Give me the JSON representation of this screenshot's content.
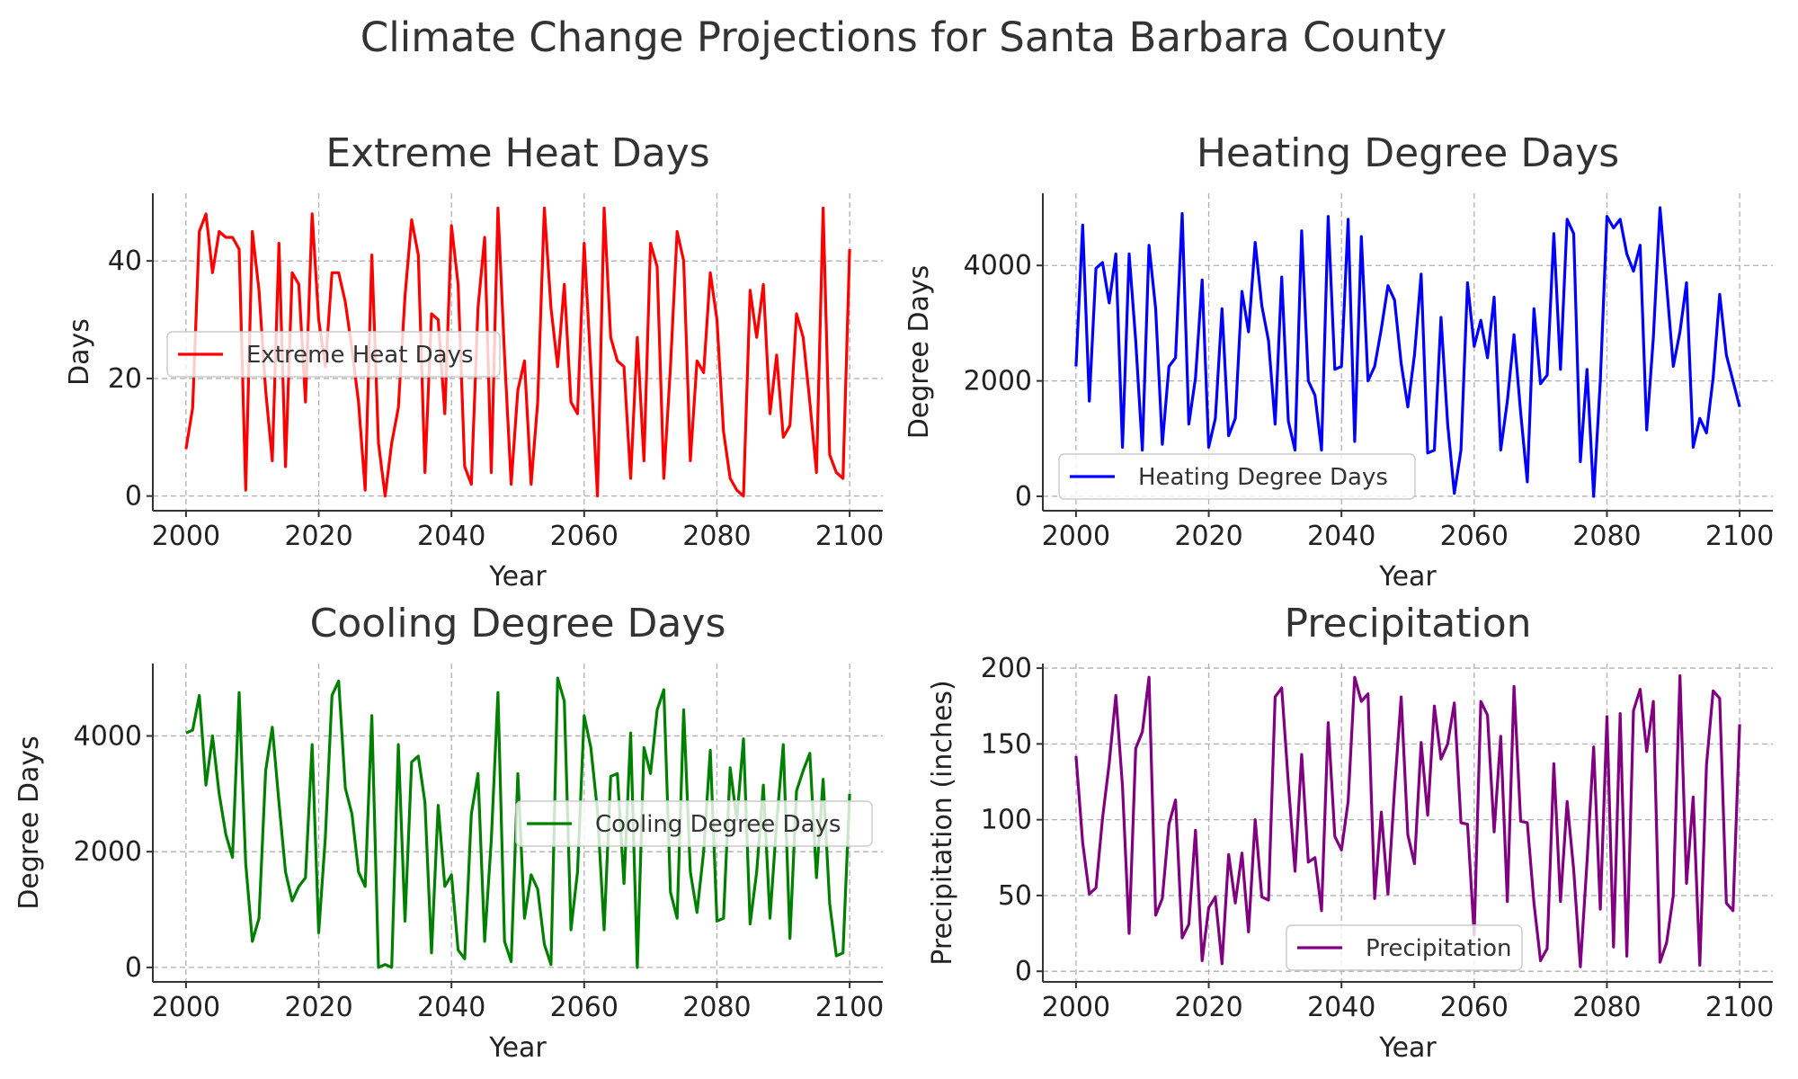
{
  "figure_title": "Climate Change Projections for Santa Barbara County",
  "chart_data": [
    {
      "type": "line",
      "title": "Extreme Heat Days",
      "xlabel": "Year",
      "ylabel": "Days",
      "xlim": [
        1995,
        2105
      ],
      "ylim": [
        -2.5,
        51.5
      ],
      "xticks": [
        2000,
        2020,
        2040,
        2060,
        2080,
        2100
      ],
      "yticks": [
        0,
        20,
        40
      ],
      "grid": true,
      "legend": "center-left",
      "series": [
        {
          "name": "Extreme Heat Days",
          "color": "#ff0000",
          "x": [
            2000,
            2001,
            2002,
            2003,
            2004,
            2005,
            2006,
            2007,
            2008,
            2009,
            2010,
            2011,
            2012,
            2013,
            2014,
            2015,
            2016,
            2017,
            2018,
            2019,
            2020,
            2021,
            2022,
            2023,
            2024,
            2025,
            2026,
            2027,
            2028,
            2029,
            2030,
            2031,
            2032,
            2033,
            2034,
            2035,
            2036,
            2037,
            2038,
            2039,
            2040,
            2041,
            2042,
            2043,
            2044,
            2045,
            2046,
            2047,
            2048,
            2049,
            2050,
            2051,
            2052,
            2053,
            2054,
            2055,
            2056,
            2057,
            2058,
            2059,
            2060,
            2061,
            2062,
            2063,
            2064,
            2065,
            2066,
            2067,
            2068,
            2069,
            2070,
            2071,
            2072,
            2073,
            2074,
            2075,
            2076,
            2077,
            2078,
            2079,
            2080,
            2081,
            2082,
            2083,
            2084,
            2085,
            2086,
            2087,
            2088,
            2089,
            2090,
            2091,
            2092,
            2093,
            2094,
            2095,
            2096,
            2097,
            2098,
            2099,
            2100
          ],
          "y": [
            8,
            15,
            45,
            48,
            38,
            45,
            44,
            44,
            42,
            1,
            45,
            35,
            18,
            6,
            43,
            5,
            38,
            36,
            16,
            48,
            30,
            22,
            38,
            38,
            33,
            25,
            16,
            1,
            41,
            9,
            0,
            9,
            15,
            34,
            47,
            41,
            4,
            31,
            30,
            14,
            46,
            36,
            5,
            2,
            32,
            44,
            4,
            49,
            24,
            2,
            18,
            23,
            2,
            16,
            49,
            32,
            22,
            36,
            16,
            14,
            43,
            22,
            0,
            49,
            27,
            23,
            22,
            3,
            27,
            6,
            43,
            39,
            3,
            22,
            45,
            40,
            6,
            23,
            21,
            38,
            30,
            11,
            3,
            1,
            0,
            35,
            27,
            36,
            14,
            24,
            10,
            12,
            31,
            27,
            16,
            4,
            49,
            7,
            4,
            3,
            42
          ]
        }
      ]
    },
    {
      "type": "line",
      "title": "Heating Degree Days",
      "xlabel": "Year",
      "ylabel": "Degree Days",
      "xlim": [
        1995,
        2105
      ],
      "ylim": [
        -250,
        5250
      ],
      "xticks": [
        2000,
        2020,
        2040,
        2060,
        2080,
        2100
      ],
      "yticks": [
        0,
        2000,
        4000
      ],
      "grid": true,
      "legend": "bottom-left",
      "series": [
        {
          "name": "Heating Degree Days",
          "color": "#0000ff",
          "x": [
            2000,
            2001,
            2002,
            2003,
            2004,
            2005,
            2006,
            2007,
            2008,
            2009,
            2010,
            2011,
            2012,
            2013,
            2014,
            2015,
            2016,
            2017,
            2018,
            2019,
            2020,
            2021,
            2022,
            2023,
            2024,
            2025,
            2026,
            2027,
            2028,
            2029,
            2030,
            2031,
            2032,
            2033,
            2034,
            2035,
            2036,
            2037,
            2038,
            2039,
            2040,
            2041,
            2042,
            2043,
            2044,
            2045,
            2046,
            2047,
            2048,
            2049,
            2050,
            2051,
            2052,
            2053,
            2054,
            2055,
            2056,
            2057,
            2058,
            2059,
            2060,
            2061,
            2062,
            2063,
            2064,
            2065,
            2066,
            2067,
            2068,
            2069,
            2070,
            2071,
            2072,
            2073,
            2074,
            2075,
            2076,
            2077,
            2078,
            2079,
            2080,
            2081,
            2082,
            2083,
            2084,
            2085,
            2086,
            2087,
            2088,
            2089,
            2090,
            2091,
            2092,
            2093,
            2094,
            2095,
            2096,
            2097,
            2098,
            2099,
            2100
          ],
          "y": [
            2250,
            4700,
            1650,
            3950,
            4050,
            3350,
            4200,
            850,
            4200,
            2700,
            800,
            4350,
            3250,
            900,
            2250,
            2400,
            4900,
            1250,
            2050,
            3750,
            850,
            1350,
            3250,
            1050,
            1350,
            3550,
            2850,
            4400,
            3300,
            2700,
            1250,
            3800,
            1300,
            800,
            4600,
            2000,
            1750,
            800,
            4850,
            2200,
            2250,
            4800,
            950,
            4500,
            2000,
            2250,
            2900,
            3650,
            3400,
            2300,
            1550,
            2450,
            3850,
            750,
            800,
            3100,
            1250,
            50,
            800,
            3700,
            2600,
            3050,
            2400,
            3450,
            800,
            1650,
            2800,
            1450,
            250,
            3250,
            1950,
            2100,
            4550,
            2200,
            4800,
            4550,
            600,
            2200,
            0,
            2000,
            4850,
            4650,
            4800,
            4200,
            3900,
            4350,
            1150,
            2750,
            5000,
            3650,
            2250,
            2850,
            3700,
            850,
            1350,
            1100,
            2050,
            3500,
            2450,
            2000,
            1550
          ]
        }
      ]
    },
    {
      "type": "line",
      "title": "Cooling Degree Days",
      "xlabel": "Year",
      "ylabel": "Degree Days",
      "xlim": [
        1995,
        2105
      ],
      "ylim": [
        -250,
        5250
      ],
      "xticks": [
        2000,
        2020,
        2040,
        2060,
        2080,
        2100
      ],
      "yticks": [
        0,
        2000,
        4000
      ],
      "grid": true,
      "legend": "center-right",
      "series": [
        {
          "name": "Cooling Degree Days",
          "color": "#008000",
          "x": [
            2000,
            2001,
            2002,
            2003,
            2004,
            2005,
            2006,
            2007,
            2008,
            2009,
            2010,
            2011,
            2012,
            2013,
            2014,
            2015,
            2016,
            2017,
            2018,
            2019,
            2020,
            2021,
            2022,
            2023,
            2024,
            2025,
            2026,
            2027,
            2028,
            2029,
            2030,
            2031,
            2032,
            2033,
            2034,
            2035,
            2036,
            2037,
            2038,
            2039,
            2040,
            2041,
            2042,
            2043,
            2044,
            2045,
            2046,
            2047,
            2048,
            2049,
            2050,
            2051,
            2052,
            2053,
            2054,
            2055,
            2056,
            2057,
            2058,
            2059,
            2060,
            2061,
            2062,
            2063,
            2064,
            2065,
            2066,
            2067,
            2068,
            2069,
            2070,
            2071,
            2072,
            2073,
            2074,
            2075,
            2076,
            2077,
            2078,
            2079,
            2080,
            2081,
            2082,
            2083,
            2084,
            2085,
            2086,
            2087,
            2088,
            2089,
            2090,
            2091,
            2092,
            2093,
            2094,
            2095,
            2096,
            2097,
            2098,
            2099,
            2100
          ],
          "y": [
            4050,
            4100,
            4700,
            3150,
            4000,
            3000,
            2300,
            1900,
            4750,
            1800,
            450,
            850,
            3400,
            4150,
            2850,
            1650,
            1150,
            1400,
            1550,
            3850,
            600,
            2250,
            4700,
            4950,
            3100,
            2650,
            1650,
            1400,
            4350,
            0,
            50,
            0,
            3850,
            800,
            3550,
            3650,
            2850,
            250,
            2800,
            1400,
            1600,
            300,
            150,
            2650,
            3350,
            450,
            2200,
            4750,
            450,
            100,
            3350,
            850,
            1600,
            1350,
            400,
            50,
            5000,
            4600,
            650,
            1650,
            4350,
            3800,
            2700,
            650,
            3300,
            3350,
            1450,
            4050,
            0,
            3800,
            3350,
            4450,
            4800,
            1300,
            850,
            4450,
            1650,
            950,
            2000,
            3750,
            800,
            850,
            3450,
            2550,
            3950,
            750,
            1650,
            3150,
            850,
            2500,
            3850,
            500,
            3050,
            3400,
            3700,
            1550,
            3250,
            1100,
            200,
            250,
            3000
          ]
        }
      ]
    },
    {
      "type": "line",
      "title": "Precipitation",
      "xlabel": "Year",
      "ylabel": "Precipitation (inches)",
      "xlim": [
        1995,
        2105
      ],
      "ylim": [
        -7,
        203
      ],
      "xticks": [
        2000,
        2020,
        2040,
        2060,
        2080,
        2100
      ],
      "yticks": [
        0,
        50,
        100,
        150,
        200
      ],
      "grid": true,
      "legend": "bottom-center",
      "series": [
        {
          "name": "Precipitation",
          "color": "#800080",
          "x": [
            2000,
            2001,
            2002,
            2003,
            2004,
            2005,
            2006,
            2007,
            2008,
            2009,
            2010,
            2011,
            2012,
            2013,
            2014,
            2015,
            2016,
            2017,
            2018,
            2019,
            2020,
            2021,
            2022,
            2023,
            2024,
            2025,
            2026,
            2027,
            2028,
            2029,
            2030,
            2031,
            2032,
            2033,
            2034,
            2035,
            2036,
            2037,
            2038,
            2039,
            2040,
            2041,
            2042,
            2043,
            2044,
            2045,
            2046,
            2047,
            2048,
            2049,
            2050,
            2051,
            2052,
            2053,
            2054,
            2055,
            2056,
            2057,
            2058,
            2059,
            2060,
            2061,
            2062,
            2063,
            2064,
            2065,
            2066,
            2067,
            2068,
            2069,
            2070,
            2071,
            2072,
            2073,
            2074,
            2075,
            2076,
            2077,
            2078,
            2079,
            2080,
            2081,
            2082,
            2083,
            2084,
            2085,
            2086,
            2087,
            2088,
            2089,
            2090,
            2091,
            2092,
            2093,
            2094,
            2095,
            2096,
            2097,
            2098,
            2099,
            2100
          ],
          "y": [
            142,
            85,
            51,
            55,
            101,
            137,
            182,
            122,
            25,
            147,
            158,
            194,
            37,
            48,
            97,
            113,
            22,
            31,
            93,
            7,
            42,
            49,
            5,
            77,
            45,
            78,
            26,
            100,
            49,
            47,
            181,
            187,
            124,
            66,
            143,
            72,
            75,
            40,
            164,
            89,
            80,
            112,
            194,
            178,
            183,
            48,
            105,
            51,
            120,
            181,
            90,
            71,
            151,
            103,
            175,
            140,
            150,
            177,
            98,
            97,
            24,
            178,
            169,
            92,
            155,
            46,
            188,
            99,
            98,
            45,
            7,
            15,
            137,
            46,
            112,
            67,
            3,
            72,
            148,
            41,
            168,
            16,
            170,
            10,
            172,
            186,
            145,
            178,
            6,
            19,
            50,
            195,
            58,
            115,
            4,
            136,
            185,
            180,
            45,
            40,
            163
          ]
        }
      ]
    }
  ]
}
